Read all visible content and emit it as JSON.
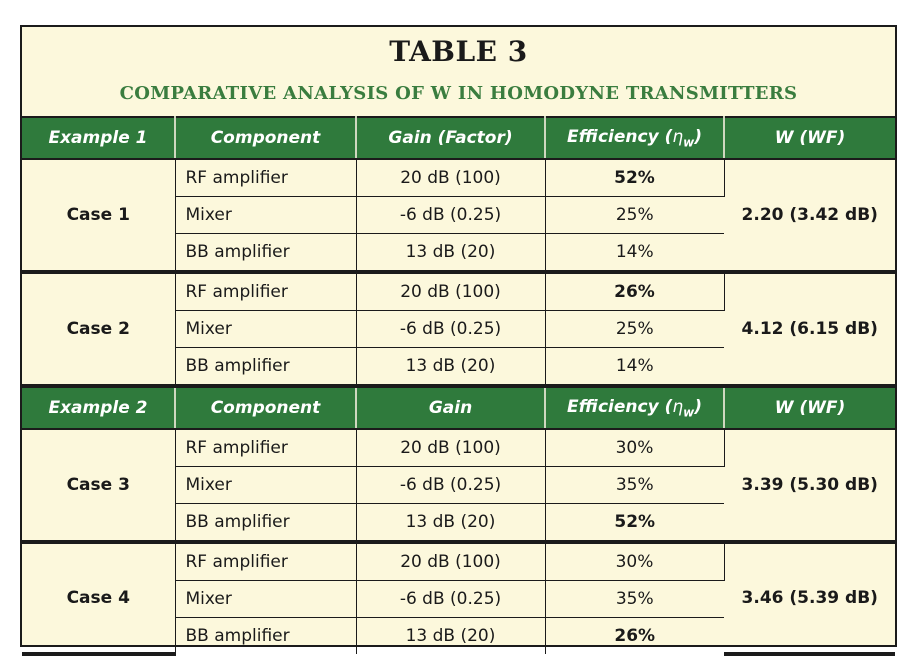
{
  "title": "TABLE 3",
  "subtitle": "COMPARATIVE ANALYSIS OF W IN HOMODYNE TRANSMITTERS",
  "header1": {
    "example": "Example 1",
    "component": "Component",
    "gain": "Gain (Factor)",
    "efficiency": "Efficiency (",
    "eta": "η",
    "eta_sub": "w",
    "close": ")",
    "w": "W (WF)"
  },
  "header2": {
    "example": "Example 2",
    "component": "Component",
    "gain": "Gain",
    "efficiency": "Efficiency (",
    "eta": "η",
    "eta_sub": "w",
    "close": ")",
    "w": "W (WF)"
  },
  "cases": [
    {
      "label": "Case 1",
      "w": "2.20 (3.42 dB)",
      "rows": [
        {
          "component": "RF amplifier",
          "gain": "20 dB (100)",
          "eff": "52%",
          "bold": true
        },
        {
          "component": "Mixer",
          "gain": "-6 dB (0.25)",
          "eff": "25%",
          "bold": false
        },
        {
          "component": "BB amplifier",
          "gain": "13 dB (20)",
          "eff": "14%",
          "bold": false
        }
      ]
    },
    {
      "label": "Case 2",
      "w": "4.12 (6.15 dB)",
      "rows": [
        {
          "component": "RF amplifier",
          "gain": "20 dB (100)",
          "eff": "26%",
          "bold": true
        },
        {
          "component": "Mixer",
          "gain": "-6 dB (0.25)",
          "eff": "25%",
          "bold": false
        },
        {
          "component": "BB amplifier",
          "gain": "13 dB (20)",
          "eff": "14%",
          "bold": false
        }
      ]
    },
    {
      "label": "Case 3",
      "w": "3.39 (5.30 dB)",
      "rows": [
        {
          "component": "RF amplifier",
          "gain": "20 dB (100)",
          "eff": "30%",
          "bold": false
        },
        {
          "component": "Mixer",
          "gain": "-6 dB (0.25)",
          "eff": "35%",
          "bold": false
        },
        {
          "component": "BB amplifier",
          "gain": "13 dB (20)",
          "eff": "52%",
          "bold": true
        }
      ]
    },
    {
      "label": "Case 4",
      "w": "3.46 (5.39 dB)",
      "rows": [
        {
          "component": "RF amplifier",
          "gain": "20 dB (100)",
          "eff": "30%",
          "bold": false
        },
        {
          "component": "Mixer",
          "gain": "-6 dB (0.25)",
          "eff": "35%",
          "bold": false
        },
        {
          "component": "BB amplifier",
          "gain": "13 dB (20)",
          "eff": "26%",
          "bold": true
        }
      ]
    }
  ]
}
